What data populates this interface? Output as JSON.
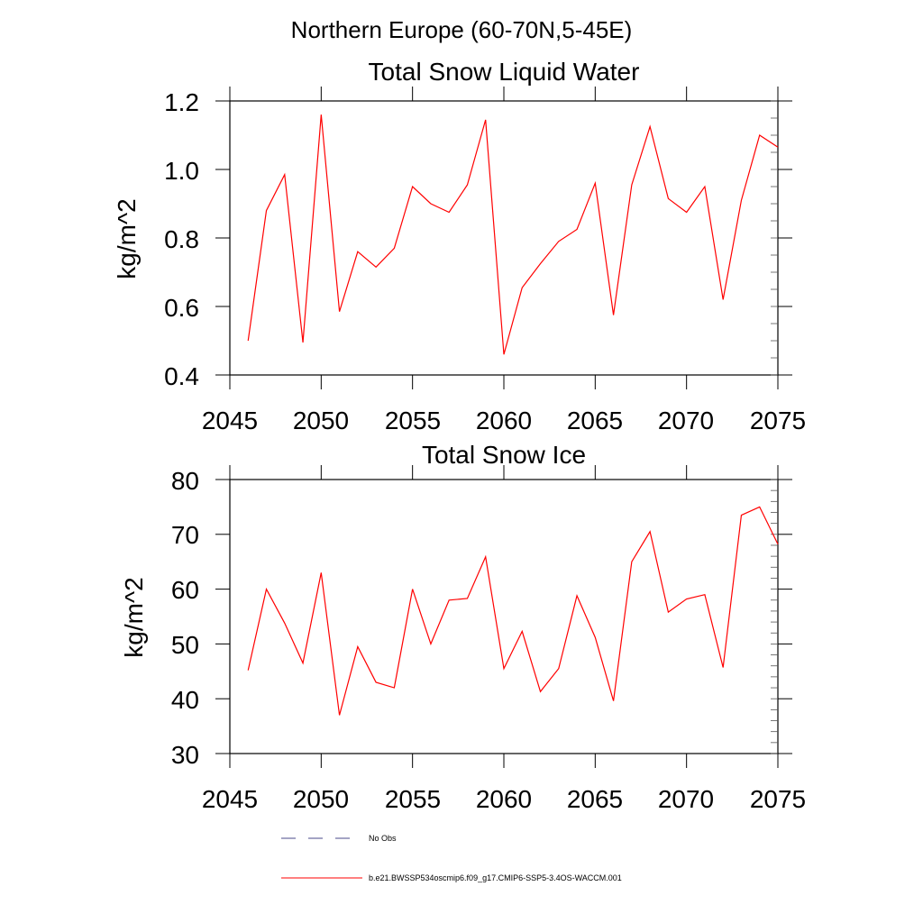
{
  "suptitle": "Northern Europe (60-70N,5-45E)",
  "chart_data": [
    {
      "type": "line",
      "title": "Total Snow Liquid Water",
      "ylabel": "kg/m^2",
      "xlabel": "",
      "xlim": [
        2045,
        2075
      ],
      "ylim": [
        0.4,
        1.2
      ],
      "x_ticks": [
        2045,
        2050,
        2055,
        2060,
        2065,
        2070,
        2075
      ],
      "x_tick_labels": [
        "2045",
        "2050",
        "2055",
        "2060",
        "2065",
        "2070",
        "2075"
      ],
      "y_ticks": [
        0.4,
        0.6,
        0.8,
        1.0,
        1.2
      ],
      "y_tick_labels": [
        "0.4",
        "0.6",
        "0.8",
        "1.0",
        "1.2"
      ],
      "series": [
        {
          "name": "b.e21.BWSSP534oscmip6.f09_g17.CMIP6-SSP5-3.4OS-WACCM.001",
          "color": "#ff0000",
          "x": [
            2046,
            2047,
            2048,
            2049,
            2050,
            2051,
            2052,
            2053,
            2054,
            2055,
            2056,
            2057,
            2058,
            2059,
            2060,
            2061,
            2062,
            2063,
            2064,
            2065,
            2066,
            2067,
            2068,
            2069,
            2070,
            2071,
            2072,
            2073,
            2074,
            2075
          ],
          "values": [
            0.5,
            0.88,
            0.985,
            0.495,
            1.16,
            0.585,
            0.76,
            0.715,
            0.77,
            0.95,
            0.9,
            0.875,
            0.955,
            1.145,
            0.46,
            0.655,
            0.725,
            0.79,
            0.825,
            0.96,
            0.575,
            0.955,
            1.125,
            0.915,
            0.875,
            0.95,
            0.62,
            0.91,
            1.1,
            1.065
          ]
        }
      ]
    },
    {
      "type": "line",
      "title": "Total Snow Ice",
      "ylabel": "kg/m^2",
      "xlabel": "",
      "xlim": [
        2045,
        2075
      ],
      "ylim": [
        30,
        80
      ],
      "x_ticks": [
        2045,
        2050,
        2055,
        2060,
        2065,
        2070,
        2075
      ],
      "x_tick_labels": [
        "2045",
        "2050",
        "2055",
        "2060",
        "2065",
        "2070",
        "2075"
      ],
      "y_ticks": [
        30,
        40,
        50,
        60,
        70,
        80
      ],
      "y_tick_labels": [
        "30",
        "40",
        "50",
        "60",
        "70",
        "80"
      ],
      "series": [
        {
          "name": "b.e21.BWSSP534oscmip6.f09_g17.CMIP6-SSP5-3.4OS-WACCM.001",
          "color": "#ff0000",
          "x": [
            2046,
            2047,
            2048,
            2049,
            2050,
            2051,
            2052,
            2053,
            2054,
            2055,
            2056,
            2057,
            2058,
            2059,
            2060,
            2061,
            2062,
            2063,
            2064,
            2065,
            2066,
            2067,
            2068,
            2069,
            2070,
            2071,
            2072,
            2073,
            2074,
            2075
          ],
          "values": [
            45.2,
            60.0,
            53.8,
            46.5,
            63.0,
            37.0,
            49.5,
            43.0,
            42.0,
            60.0,
            50.0,
            58.0,
            58.3,
            65.9,
            45.5,
            52.3,
            41.3,
            45.5,
            58.8,
            51.2,
            39.6,
            65.0,
            70.5,
            55.8,
            58.2,
            59.0,
            45.7,
            73.5,
            75.0,
            68.2
          ]
        }
      ]
    }
  ],
  "legend": {
    "placement": "bottom-center",
    "entries": [
      {
        "label": "No Obs",
        "style": "dashed",
        "color": "#4a4a8a"
      },
      {
        "label": "b.e21.BWSSP534oscmip6.f09_g17.CMIP6-SSP5-3.4OS-WACCM.001",
        "style": "solid",
        "color": "#ff0000"
      }
    ]
  }
}
